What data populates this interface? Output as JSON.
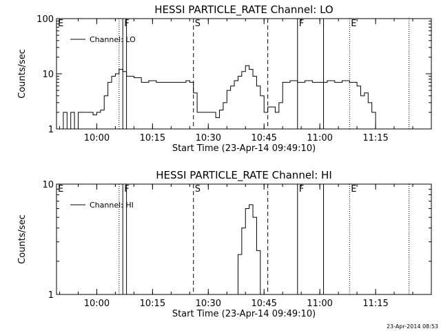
{
  "chart_data": [
    {
      "type": "line",
      "title": "HESSI PARTICLE_RATE Channel: LO",
      "xlabel": "Start Time (23-Apr-14 09:49:10)",
      "ylabel": "Counts/sec",
      "y_scale": "log",
      "ylim": [
        1,
        100
      ],
      "xlim": [
        "09:49:10",
        "11:30:00"
      ],
      "x_tick_labels": [
        "10:00",
        "10:15",
        "10:30",
        "10:45",
        "11:00",
        "11:15"
      ],
      "y_tick_labels": [
        "1",
        "10",
        "100"
      ],
      "legend": {
        "entry": "Channel: LO",
        "placement": "top-left"
      },
      "markers": [
        {
          "label": "E",
          "time": "09:49:10",
          "style": "none"
        },
        {
          "label": "",
          "time": "10:06",
          "style": "dotted"
        },
        {
          "label": "F",
          "time": "10:07",
          "style": "solid"
        },
        {
          "label": "",
          "time": "10:08",
          "style": "solid"
        },
        {
          "label": "S",
          "time": "10:26",
          "style": "dashed"
        },
        {
          "label": "",
          "time": "10:46",
          "style": "dashed"
        },
        {
          "label": "F",
          "time": "10:54",
          "style": "solid"
        },
        {
          "label": "",
          "time": "11:01",
          "style": "solid"
        },
        {
          "label": "E",
          "time": "11:08",
          "style": "dotted"
        },
        {
          "label": "",
          "time": "11:24",
          "style": "dotted"
        }
      ],
      "series": [
        {
          "name": "Channel: LO",
          "x": [
            "09:50",
            "09:51",
            "09:52",
            "09:53",
            "09:54",
            "09:55",
            "09:56",
            "09:57",
            "09:58",
            "09:59",
            "10:00",
            "10:01",
            "10:02",
            "10:03",
            "10:04",
            "10:05",
            "10:06",
            "10:07",
            "10:08",
            "10:10",
            "10:12",
            "10:14",
            "10:16",
            "10:18",
            "10:20",
            "10:22",
            "10:24",
            "10:25",
            "10:26",
            "10:27",
            "10:28",
            "10:29",
            "10:30",
            "10:31",
            "10:32",
            "10:33",
            "10:34",
            "10:35",
            "10:36",
            "10:37",
            "10:38",
            "10:39",
            "10:40",
            "10:41",
            "10:42",
            "10:43",
            "10:44",
            "10:45",
            "10:46",
            "10:47",
            "10:48",
            "10:49",
            "10:50",
            "10:52",
            "10:54",
            "10:56",
            "10:58",
            "11:00",
            "11:02",
            "11:04",
            "11:06",
            "11:08",
            "11:10",
            "11:11",
            "11:12",
            "11:13",
            "11:14",
            "11:15",
            "11:16"
          ],
          "y": [
            1.0,
            2.0,
            1.0,
            2.0,
            1.0,
            2.0,
            2.0,
            2.0,
            2.0,
            1.8,
            2.0,
            2.2,
            4.0,
            7.0,
            9.0,
            10.0,
            12.0,
            11.0,
            9.0,
            8.5,
            7.0,
            7.5,
            7.0,
            7.0,
            7.0,
            7.0,
            7.5,
            7.0,
            4.5,
            2.0,
            2.0,
            2.0,
            2.0,
            2.0,
            1.6,
            2.2,
            3.0,
            5.0,
            6.0,
            7.5,
            9.0,
            11.0,
            14.0,
            12.0,
            9.0,
            6.0,
            4.0,
            2.0,
            2.5,
            2.5,
            2.0,
            3.0,
            7.0,
            7.5,
            7.0,
            7.5,
            7.0,
            7.0,
            7.5,
            7.0,
            7.5,
            7.0,
            6.0,
            4.0,
            4.5,
            3.0,
            2.0,
            1.0,
            1.0
          ]
        }
      ]
    },
    {
      "type": "line",
      "title": "HESSI PARTICLE_RATE Channel: HI",
      "xlabel": "Start Time (23-Apr-14 09:49:10)",
      "ylabel": "Counts/sec",
      "y_scale": "log",
      "ylim": [
        1,
        10
      ],
      "xlim": [
        "09:49:10",
        "11:30:00"
      ],
      "x_tick_labels": [
        "10:00",
        "10:15",
        "10:30",
        "10:45",
        "11:00",
        "11:15"
      ],
      "y_tick_labels": [
        "1",
        "10"
      ],
      "legend": {
        "entry": "Channel: HI",
        "placement": "top-left"
      },
      "markers": [
        {
          "label": "E",
          "time": "09:49:10",
          "style": "none"
        },
        {
          "label": "",
          "time": "10:06",
          "style": "dotted"
        },
        {
          "label": "F",
          "time": "10:07",
          "style": "solid"
        },
        {
          "label": "",
          "time": "10:08",
          "style": "solid"
        },
        {
          "label": "S",
          "time": "10:26",
          "style": "dashed"
        },
        {
          "label": "",
          "time": "10:46",
          "style": "dashed"
        },
        {
          "label": "F",
          "time": "10:54",
          "style": "solid"
        },
        {
          "label": "",
          "time": "11:01",
          "style": "solid"
        },
        {
          "label": "E",
          "time": "11:08",
          "style": "dotted"
        },
        {
          "label": "",
          "time": "11:24",
          "style": "dotted"
        }
      ],
      "series": [
        {
          "name": "Channel: HI",
          "x": [
            "10:37",
            "10:38",
            "10:39",
            "10:40",
            "10:41",
            "10:42",
            "10:43",
            "10:44"
          ],
          "y": [
            1.0,
            2.3,
            4.0,
            6.0,
            6.5,
            5.0,
            2.5,
            1.0
          ]
        }
      ]
    }
  ],
  "timestamp": "23-Apr-2014 08:53"
}
